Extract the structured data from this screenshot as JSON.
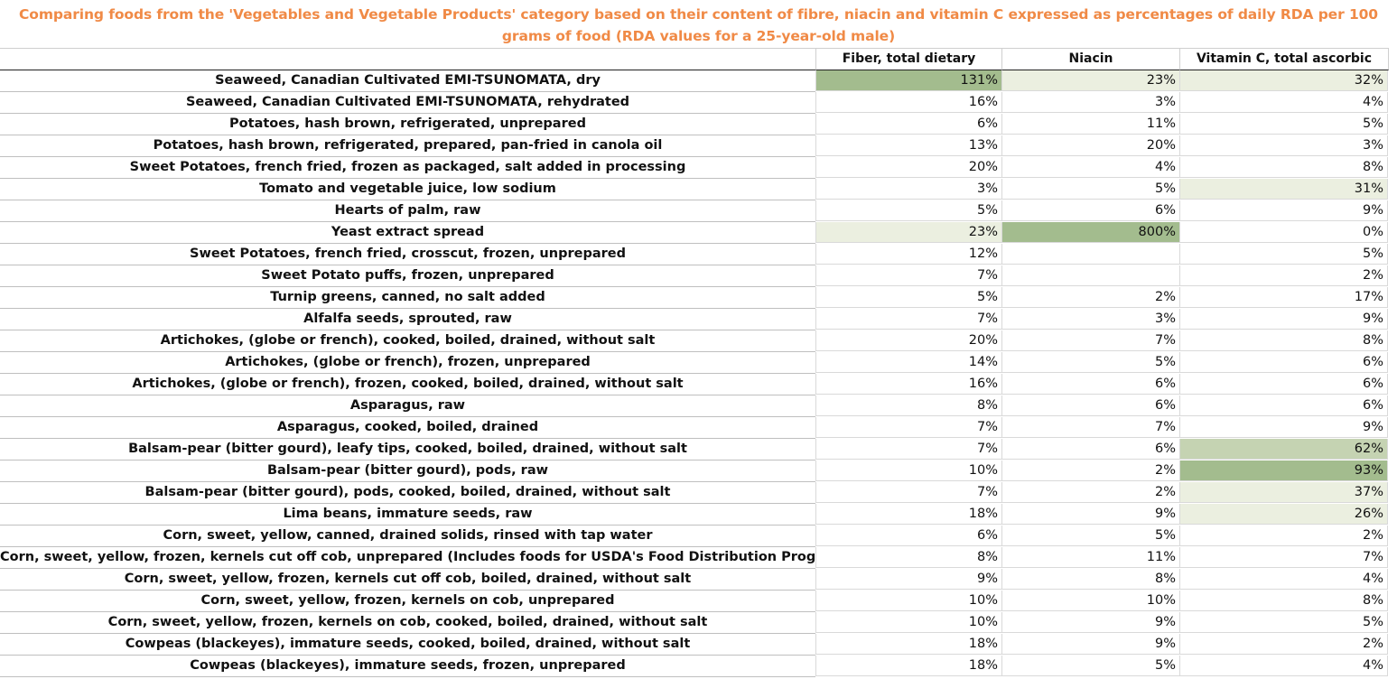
{
  "title": "Comparing foods from the 'Vegetables and Vegetable Products' category based on their content of fibre, niacin and vitamin C expressed as percentages of daily RDA per 100 grams of food (RDA values for a 25-year-old male)",
  "colors": {
    "title": "#f08a46",
    "heat_low": "#ebefe0",
    "heat_mid": "#c5d3b2",
    "heat_high": "#a3bc8e"
  },
  "chart_data": {
    "type": "table",
    "title": "Comparing foods from the 'Vegetables and Vegetable Products' category based on their content of fibre, niacin and vitamin C expressed as percentages of daily RDA per 100 grams of food (RDA values for a 25-year-old male)",
    "columns": [
      "Fiber, total dietary",
      "Niacin",
      "Vitamin C, total ascorbic acid"
    ],
    "rows": [
      {
        "food": "Seaweed, Canadian Cultivated EMI-TSUNOMATA, dry",
        "values": [
          131,
          23,
          32
        ]
      },
      {
        "food": "Seaweed, Canadian Cultivated EMI-TSUNOMATA, rehydrated",
        "values": [
          16,
          3,
          4
        ]
      },
      {
        "food": "Potatoes, hash brown, refrigerated, unprepared",
        "values": [
          6,
          11,
          5
        ]
      },
      {
        "food": "Potatoes, hash brown, refrigerated, prepared, pan-fried in canola oil",
        "values": [
          13,
          20,
          3
        ]
      },
      {
        "food": "Sweet Potatoes, french fried, frozen as packaged, salt added in processing",
        "values": [
          20,
          4,
          8
        ]
      },
      {
        "food": "Tomato and vegetable juice, low sodium",
        "values": [
          3,
          5,
          31
        ]
      },
      {
        "food": "Hearts of palm, raw",
        "values": [
          5,
          6,
          9
        ]
      },
      {
        "food": "Yeast extract spread",
        "values": [
          23,
          800,
          0
        ]
      },
      {
        "food": "Sweet Potatoes, french fried, crosscut, frozen, unprepared",
        "values": [
          12,
          null,
          5
        ]
      },
      {
        "food": "Sweet Potato puffs, frozen, unprepared",
        "values": [
          7,
          null,
          2
        ]
      },
      {
        "food": "Turnip greens, canned, no salt added",
        "values": [
          5,
          2,
          17
        ]
      },
      {
        "food": "Alfalfa seeds, sprouted, raw",
        "values": [
          7,
          3,
          9
        ]
      },
      {
        "food": "Artichokes, (globe or french), cooked, boiled, drained, without salt",
        "values": [
          20,
          7,
          8
        ]
      },
      {
        "food": "Artichokes, (globe or french), frozen, unprepared",
        "values": [
          14,
          5,
          6
        ]
      },
      {
        "food": "Artichokes, (globe or french), frozen, cooked, boiled, drained, without salt",
        "values": [
          16,
          6,
          6
        ]
      },
      {
        "food": "Asparagus, raw",
        "values": [
          8,
          6,
          6
        ]
      },
      {
        "food": "Asparagus, cooked, boiled, drained",
        "values": [
          7,
          7,
          9
        ]
      },
      {
        "food": "Balsam-pear (bitter gourd), leafy tips, cooked, boiled, drained, without salt",
        "values": [
          7,
          6,
          62
        ]
      },
      {
        "food": "Balsam-pear (bitter gourd), pods, raw",
        "values": [
          10,
          2,
          93
        ]
      },
      {
        "food": "Balsam-pear (bitter gourd), pods, cooked, boiled, drained, without salt",
        "values": [
          7,
          2,
          37
        ]
      },
      {
        "food": "Lima beans, immature seeds, raw",
        "values": [
          18,
          9,
          26
        ]
      },
      {
        "food": "Corn, sweet, yellow, canned, drained solids, rinsed with tap water",
        "values": [
          6,
          5,
          2
        ]
      },
      {
        "food": "Corn, sweet, yellow, frozen, kernels cut off cob, unprepared (Includes foods for USDA's Food Distribution Program)",
        "values": [
          8,
          11,
          7
        ]
      },
      {
        "food": "Corn, sweet, yellow, frozen, kernels cut off cob, boiled, drained, without salt",
        "values": [
          9,
          8,
          4
        ]
      },
      {
        "food": "Corn, sweet, yellow, frozen, kernels on cob, unprepared",
        "values": [
          10,
          10,
          8
        ]
      },
      {
        "food": "Corn, sweet, yellow, frozen, kernels on cob, cooked, boiled, drained, without salt",
        "values": [
          10,
          9,
          5
        ]
      },
      {
        "food": "Cowpeas (blackeyes), immature seeds, cooked, boiled, drained, without salt",
        "values": [
          18,
          9,
          2
        ]
      },
      {
        "food": "Cowpeas (blackeyes), immature seeds, frozen, unprepared",
        "values": [
          18,
          5,
          4
        ]
      }
    ],
    "highlights": [
      {
        "row": 0,
        "col": 0,
        "level": "high"
      },
      {
        "row": 0,
        "col": 1,
        "level": "low"
      },
      {
        "row": 0,
        "col": 2,
        "level": "low"
      },
      {
        "row": 5,
        "col": 2,
        "level": "low"
      },
      {
        "row": 7,
        "col": 0,
        "level": "low"
      },
      {
        "row": 7,
        "col": 1,
        "level": "high"
      },
      {
        "row": 17,
        "col": 2,
        "level": "mid"
      },
      {
        "row": 18,
        "col": 2,
        "level": "high"
      },
      {
        "row": 19,
        "col": 2,
        "level": "low"
      },
      {
        "row": 20,
        "col": 2,
        "level": "low"
      }
    ],
    "value_suffix": "%"
  }
}
